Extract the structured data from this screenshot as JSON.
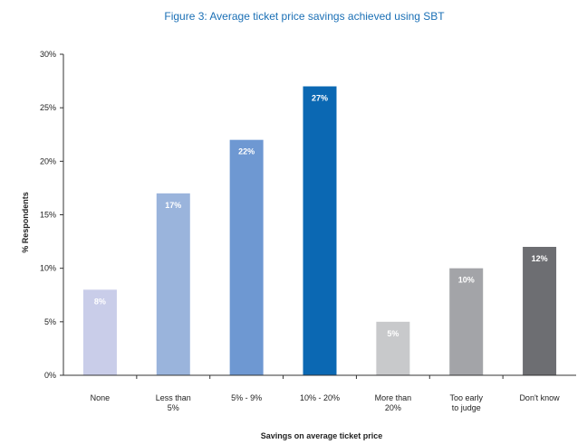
{
  "chart_data": {
    "type": "bar",
    "title": "Figure 3: Average ticket price savings achieved using SBT",
    "xlabel": "Savings on average ticket price",
    "ylabel": "% Respondents",
    "categories": [
      [
        "None"
      ],
      [
        "Less than",
        "5%"
      ],
      [
        "5% - 9%"
      ],
      [
        "10% - 20%"
      ],
      [
        "More than",
        "20%"
      ],
      [
        "Too early",
        "to judge"
      ],
      [
        "Don't know"
      ]
    ],
    "values": [
      8,
      17,
      22,
      27,
      5,
      10,
      12
    ],
    "value_labels": [
      "8%",
      "17%",
      "22%",
      "27%",
      "5%",
      "10%",
      "12%"
    ],
    "colors": [
      "#c9cde9",
      "#9ab4dc",
      "#6e98d2",
      "#0b68b3",
      "#c8c9cb",
      "#a3a4a8",
      "#6d6e72"
    ],
    "yticks": [
      0,
      5,
      10,
      15,
      20,
      25,
      30
    ],
    "ytick_labels": [
      "0%",
      "5%",
      "10%",
      "15%",
      "20%",
      "25%",
      "30%"
    ],
    "ylim": [
      0,
      30
    ],
    "grid": false,
    "legend": "none"
  }
}
